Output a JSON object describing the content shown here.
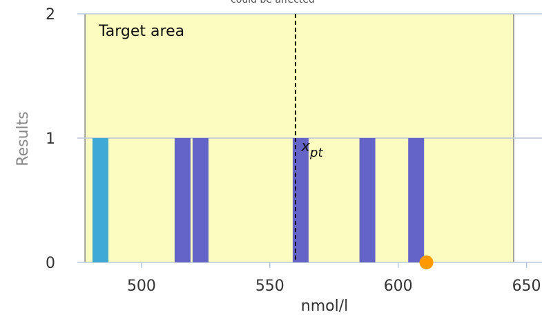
{
  "chart_data": {
    "type": "bar",
    "title": "",
    "top_text": "could be affected",
    "xlabel": "nmol/l",
    "ylabel": "Results",
    "xlim": [
      475,
      652
    ],
    "ylim": [
      0,
      2
    ],
    "x_ticks": [
      500,
      550,
      600,
      650
    ],
    "y_ticks": [
      0,
      1,
      2
    ],
    "grid": "horizontal",
    "target_area": {
      "label": "Target area",
      "from": 478,
      "to": 645,
      "color": "#fbfcbf"
    },
    "assigned_value": {
      "label": "x",
      "subscript": "pt",
      "x": 560
    },
    "bars": [
      {
        "x": 484,
        "count": 1,
        "color": "#3fa9d6"
      },
      {
        "x": 516,
        "count": 1,
        "color": "#6464c8"
      },
      {
        "x": 523,
        "count": 1,
        "color": "#6464c8"
      },
      {
        "x": 562,
        "count": 1,
        "color": "#6464c8"
      },
      {
        "x": 588,
        "count": 1,
        "color": "#6464c8"
      },
      {
        "x": 607,
        "count": 1,
        "color": "#6464c8"
      }
    ],
    "marker": {
      "x": 611,
      "y": 0,
      "color": "#ff9900"
    },
    "colors": {
      "grid": "#b8c8d8",
      "axis": "#333333"
    }
  }
}
